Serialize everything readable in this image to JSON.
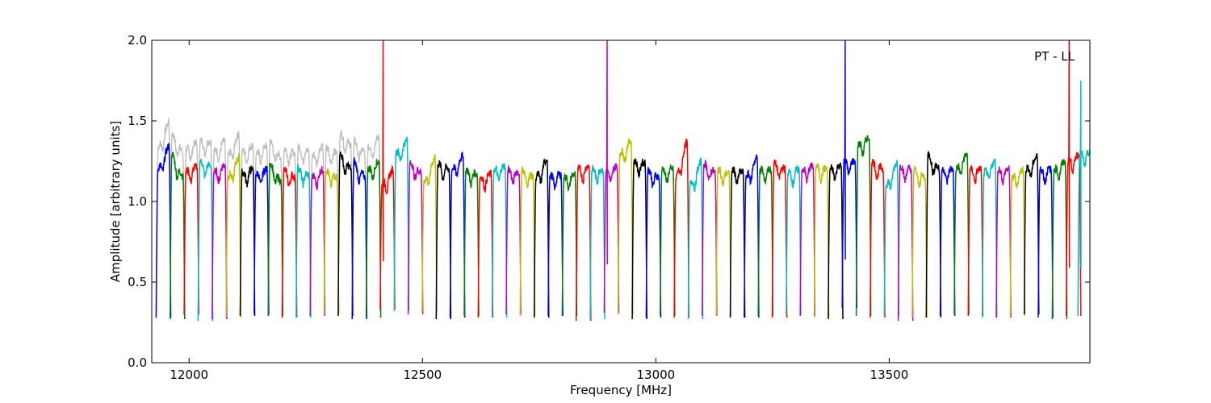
{
  "chart_data": {
    "type": "line",
    "title": "",
    "annotation": "PT - LL",
    "xlabel": "Frequency [MHz]",
    "ylabel": "Amplitude [arbitrary units]",
    "xlim": [
      11920,
      13930
    ],
    "ylim": [
      0.0,
      2.0
    ],
    "xticks": [
      12000,
      12500,
      13000,
      13500
    ],
    "xtick_labels": [
      "12000",
      "12500",
      "13000",
      "13500"
    ],
    "yticks": [
      0.0,
      0.5,
      1.0,
      1.5,
      2.0
    ],
    "ytick_labels": [
      "0.0",
      "0.5",
      "1.0",
      "1.5",
      "2.0"
    ],
    "grid": false,
    "colors": {
      "blue": "#0000ff",
      "green": "#008000",
      "red": "#ff0000",
      "cyan": "#00bfbf",
      "magenta": "#bf00bf",
      "yellow": "#bfbf00",
      "black": "#000000",
      "background_trace": "#bfbfbf"
    },
    "channel_color_cycle": [
      "blue",
      "green",
      "red",
      "cyan",
      "magenta",
      "yellow",
      "black"
    ],
    "channel_width_mhz": 31.25,
    "channels": [
      {
        "center": 11945,
        "left": 1.2,
        "right": 1.35,
        "min": 0.28,
        "spike": null
      },
      {
        "center": 11975,
        "left": 1.3,
        "right": 1.15,
        "min": 0.27,
        "spike": null
      },
      {
        "center": 12005,
        "left": 1.19,
        "right": 1.22,
        "min": 0.3,
        "spike": null
      },
      {
        "center": 12035,
        "left": 1.25,
        "right": 1.22,
        "min": 0.26,
        "spike": null
      },
      {
        "center": 12065,
        "left": 1.18,
        "right": 1.23,
        "min": 0.27,
        "spike": null
      },
      {
        "center": 12095,
        "left": 1.15,
        "right": 1.28,
        "min": 0.28,
        "spike": null
      },
      {
        "center": 12125,
        "left": 1.18,
        "right": 1.2,
        "min": 0.29,
        "spike": null
      },
      {
        "center": 12155,
        "left": 1.17,
        "right": 1.2,
        "min": 0.3,
        "spike": null
      },
      {
        "center": 12185,
        "left": 1.25,
        "right": 1.12,
        "min": 0.29,
        "spike": null
      },
      {
        "center": 12215,
        "left": 1.2,
        "right": 1.15,
        "min": 0.28,
        "spike": null
      },
      {
        "center": 12245,
        "left": 1.21,
        "right": 1.16,
        "min": 0.28,
        "spike": null
      },
      {
        "center": 12275,
        "left": 1.15,
        "right": 1.2,
        "min": 0.29,
        "spike": null
      },
      {
        "center": 12305,
        "left": 1.2,
        "right": 1.15,
        "min": 0.3,
        "spike": null
      },
      {
        "center": 12335,
        "left": 1.3,
        "right": 1.2,
        "min": 0.29,
        "spike": null
      },
      {
        "center": 12365,
        "left": 1.25,
        "right": 1.15,
        "min": 0.27,
        "spike": null
      },
      {
        "center": 12395,
        "left": 1.2,
        "right": 1.25,
        "min": 0.28,
        "spike": null
      },
      {
        "center": 12425,
        "left": 1.1,
        "right": 1.2,
        "min": 0.33,
        "spike": 2.0
      },
      {
        "center": 12455,
        "left": 1.3,
        "right": 1.38,
        "min": 0.32,
        "spike": null
      },
      {
        "center": 12485,
        "left": 1.25,
        "right": 1.18,
        "min": 0.3,
        "spike": null
      },
      {
        "center": 12515,
        "left": 1.12,
        "right": 1.28,
        "min": 0.31,
        "spike": null
      },
      {
        "center": 12545,
        "left": 1.24,
        "right": 1.2,
        "min": 0.27,
        "spike": null
      },
      {
        "center": 12575,
        "left": 1.2,
        "right": 1.29,
        "min": 0.28,
        "spike": null
      },
      {
        "center": 12605,
        "left": 1.2,
        "right": 1.17,
        "min": 0.29,
        "spike": null
      },
      {
        "center": 12635,
        "left": 1.15,
        "right": 1.17,
        "min": 0.28,
        "spike": null
      },
      {
        "center": 12665,
        "left": 1.2,
        "right": 1.22,
        "min": 0.28,
        "spike": null
      },
      {
        "center": 12695,
        "left": 1.2,
        "right": 1.18,
        "min": 0.3,
        "spike": null
      },
      {
        "center": 12725,
        "left": 1.2,
        "right": 1.15,
        "min": 0.29,
        "spike": null
      },
      {
        "center": 12755,
        "left": 1.15,
        "right": 1.27,
        "min": 0.28,
        "spike": null
      },
      {
        "center": 12785,
        "left": 1.16,
        "right": 1.17,
        "min": 0.29,
        "spike": null
      },
      {
        "center": 12815,
        "left": 1.15,
        "right": 1.17,
        "min": 0.29,
        "spike": null
      },
      {
        "center": 12845,
        "left": 1.2,
        "right": 1.22,
        "min": 0.26,
        "spike": null
      },
      {
        "center": 12875,
        "left": 1.2,
        "right": 1.2,
        "min": 0.27,
        "spike": null
      },
      {
        "center": 12905,
        "left": 1.18,
        "right": 1.22,
        "min": 0.31,
        "spike": 2.0
      },
      {
        "center": 12935,
        "left": 1.3,
        "right": 1.38,
        "min": 0.3,
        "spike": null
      },
      {
        "center": 12965,
        "left": 1.25,
        "right": 1.24,
        "min": 0.27,
        "spike": null
      },
      {
        "center": 12995,
        "left": 1.2,
        "right": 1.15,
        "min": 0.28,
        "spike": null
      },
      {
        "center": 13025,
        "left": 1.2,
        "right": 1.2,
        "min": 0.29,
        "spike": null
      },
      {
        "center": 13055,
        "left": 1.15,
        "right": 1.38,
        "min": 0.28,
        "spike": null
      },
      {
        "center": 13085,
        "left": 1.1,
        "right": 1.25,
        "min": 0.27,
        "spike": null
      },
      {
        "center": 13115,
        "left": 1.24,
        "right": 1.18,
        "min": 0.29,
        "spike": null
      },
      {
        "center": 13145,
        "left": 1.2,
        "right": 1.17,
        "min": 0.29,
        "spike": null
      },
      {
        "center": 13175,
        "left": 1.2,
        "right": 1.18,
        "min": 0.28,
        "spike": null
      },
      {
        "center": 13205,
        "left": 1.15,
        "right": 1.28,
        "min": 0.28,
        "spike": null
      },
      {
        "center": 13235,
        "left": 1.2,
        "right": 1.2,
        "min": 0.29,
        "spike": null
      },
      {
        "center": 13265,
        "left": 1.24,
        "right": 1.2,
        "min": 0.28,
        "spike": null
      },
      {
        "center": 13295,
        "left": 1.18,
        "right": 1.2,
        "min": 0.3,
        "spike": null
      },
      {
        "center": 13325,
        "left": 1.2,
        "right": 1.22,
        "min": 0.29,
        "spike": null
      },
      {
        "center": 13355,
        "left": 1.22,
        "right": 1.2,
        "min": 0.28,
        "spike": null
      },
      {
        "center": 13385,
        "left": 1.2,
        "right": 1.23,
        "min": 0.27,
        "spike": null
      },
      {
        "center": 13415,
        "left": 1.25,
        "right": 1.25,
        "min": 0.34,
        "spike": 2.0
      },
      {
        "center": 13445,
        "left": 1.35,
        "right": 1.4,
        "min": 0.29,
        "spike": null
      },
      {
        "center": 13475,
        "left": 1.25,
        "right": 1.2,
        "min": 0.28,
        "spike": null
      },
      {
        "center": 13505,
        "left": 1.1,
        "right": 1.25,
        "min": 0.29,
        "spike": null
      },
      {
        "center": 13535,
        "left": 1.22,
        "right": 1.2,
        "min": 0.26,
        "spike": null
      },
      {
        "center": 13565,
        "left": 1.2,
        "right": 1.15,
        "min": 0.28,
        "spike": null
      },
      {
        "center": 13595,
        "left": 1.3,
        "right": 1.2,
        "min": 0.28,
        "spike": null
      },
      {
        "center": 13625,
        "left": 1.2,
        "right": 1.2,
        "min": 0.29,
        "spike": null
      },
      {
        "center": 13655,
        "left": 1.2,
        "right": 1.3,
        "min": 0.3,
        "spike": null
      },
      {
        "center": 13685,
        "left": 1.2,
        "right": 1.2,
        "min": 0.29,
        "spike": null
      },
      {
        "center": 13715,
        "left": 1.18,
        "right": 1.25,
        "min": 0.28,
        "spike": null
      },
      {
        "center": 13745,
        "left": 1.2,
        "right": 1.2,
        "min": 0.28,
        "spike": null
      },
      {
        "center": 13775,
        "left": 1.15,
        "right": 1.2,
        "min": 0.29,
        "spike": null
      },
      {
        "center": 13805,
        "left": 1.2,
        "right": 1.28,
        "min": 0.3,
        "spike": null
      },
      {
        "center": 13835,
        "left": 1.2,
        "right": 1.2,
        "min": 0.28,
        "spike": null
      },
      {
        "center": 13865,
        "left": 1.2,
        "right": 1.25,
        "min": 0.27,
        "spike": null
      },
      {
        "center": 13895,
        "left": 1.25,
        "right": 1.3,
        "min": 0.29,
        "spike": 2.0
      },
      {
        "center": 13920,
        "left": 1.3,
        "right": 1.3,
        "min": 0.29,
        "spike": 1.75
      }
    ]
  }
}
